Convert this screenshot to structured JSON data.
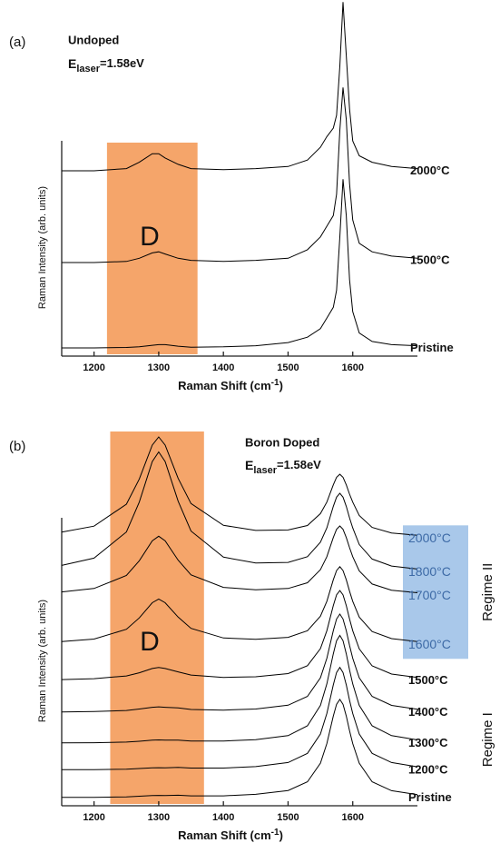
{
  "chart_data": [
    {
      "type": "line",
      "panel_label": "(a)",
      "title": "Undoped",
      "laser_symbol": "E",
      "laser_subscript": "laser",
      "laser_value": "=1.58eV",
      "annotation": "D",
      "xlabel": "Raman Shift (cm",
      "xlabel_superscript": "-1",
      "xlabel_end": ")",
      "ylabel": "Raman Intensity (arb. units)",
      "xlim": [
        1150,
        1700
      ],
      "xticks": [
        1200,
        1300,
        1400,
        1500,
        1600
      ],
      "ylim": [
        0,
        16.6
      ],
      "highlight": {
        "xlim": [
          1220,
          1360
        ],
        "color": "#f5a56a"
      },
      "x": [
        1150,
        1200,
        1250,
        1270,
        1290,
        1300,
        1310,
        1330,
        1350,
        1400,
        1450,
        1500,
        1530,
        1550,
        1560,
        1570,
        1575,
        1580,
        1585,
        1590,
        1595,
        1600,
        1610,
        1630,
        1660,
        1700
      ],
      "series": [
        {
          "name": "2000°C",
          "color": "#000000",
          "values": [
            8.6,
            8.6,
            8.7,
            9.0,
            9.4,
            9.4,
            9.2,
            8.9,
            8.7,
            8.65,
            8.7,
            8.8,
            9.1,
            9.7,
            10.2,
            10.6,
            11.2,
            13.5,
            16.5,
            14.0,
            11.5,
            10.0,
            9.3,
            9.0,
            8.8,
            8.7
          ]
        },
        {
          "name": "1500°C",
          "color": "#000000",
          "values": [
            4.3,
            4.3,
            4.35,
            4.5,
            4.75,
            4.8,
            4.7,
            4.5,
            4.4,
            4.35,
            4.4,
            4.5,
            4.9,
            5.5,
            6.0,
            6.5,
            7.5,
            10.5,
            12.5,
            11.0,
            8.0,
            6.3,
            5.2,
            4.8,
            4.6,
            4.5
          ]
        },
        {
          "name": "Pristine",
          "color": "#000000",
          "values": [
            0.3,
            0.3,
            0.32,
            0.35,
            0.42,
            0.45,
            0.45,
            0.38,
            0.33,
            0.35,
            0.4,
            0.55,
            0.8,
            1.2,
            1.7,
            2.2,
            3.0,
            5.5,
            8.2,
            6.5,
            3.5,
            2.0,
            1.0,
            0.6,
            0.45,
            0.4
          ]
        }
      ]
    },
    {
      "type": "line",
      "panel_label": "(b)",
      "title": "Boron Doped",
      "laser_symbol": "E",
      "laser_subscript": "laser",
      "laser_value": "=1.58eV",
      "annotation": "D",
      "xlabel": "Raman Shift (cm",
      "xlabel_superscript": "-1",
      "xlabel_end": ")",
      "ylabel": "Raman Intensity (arb. units)",
      "xlim": [
        1150,
        1700
      ],
      "xticks": [
        1200,
        1300,
        1400,
        1500,
        1600
      ],
      "ylim": [
        0,
        17.5
      ],
      "highlight": {
        "xlim": [
          1225,
          1370
        ],
        "color": "#f5a56a"
      },
      "regimes": [
        {
          "label": "Regime II",
          "highlight": "#a9c8ea",
          "text_color": "#3d6aa6"
        },
        {
          "label": "Regime I"
        }
      ],
      "x": [
        1150,
        1200,
        1250,
        1270,
        1290,
        1300,
        1310,
        1330,
        1350,
        1400,
        1450,
        1500,
        1530,
        1550,
        1560,
        1570,
        1575,
        1580,
        1585,
        1590,
        1595,
        1600,
        1610,
        1630,
        1660,
        1700
      ],
      "series": [
        {
          "name": "2000°C",
          "color": "#000000",
          "regime": 0,
          "values": [
            12.74,
            13.02,
            14.05,
            15.23,
            16.82,
            17.2,
            16.82,
            15.26,
            14.08,
            13.06,
            12.82,
            12.84,
            13.05,
            13.61,
            14.15,
            14.96,
            15.31,
            15.45,
            15.31,
            14.96,
            14.52,
            14.15,
            13.52,
            12.96,
            12.7,
            12.59
          ]
        },
        {
          "name": "1800°C",
          "color": "#000000",
          "regime": 0,
          "values": [
            11.18,
            11.52,
            12.75,
            14.15,
            16.05,
            16.5,
            16.05,
            14.19,
            12.79,
            11.57,
            11.29,
            11.32,
            11.59,
            12.27,
            12.94,
            13.95,
            14.38,
            14.56,
            14.38,
            13.95,
            13.41,
            12.94,
            12.16,
            11.48,
            11.15,
            11.01
          ]
        },
        {
          "name": "1700°C",
          "color": "#000000",
          "regime": 0,
          "values": [
            9.94,
            10.1,
            10.71,
            11.4,
            12.33,
            12.55,
            12.33,
            11.43,
            10.74,
            10.15,
            10.04,
            10.1,
            10.37,
            10.98,
            11.59,
            12.49,
            12.87,
            13.03,
            12.87,
            12.49,
            12.01,
            11.59,
            10.92,
            10.31,
            10.02,
            9.9
          ]
        },
        {
          "name": "1600°C",
          "color": "#000000",
          "regime": 0,
          "values": [
            7.61,
            7.73,
            8.19,
            8.72,
            9.43,
            9.6,
            9.43,
            8.76,
            8.23,
            7.78,
            7.72,
            7.81,
            8.12,
            8.8,
            9.5,
            10.51,
            10.94,
            11.12,
            10.94,
            10.51,
            9.97,
            9.5,
            8.76,
            8.08,
            7.75,
            7.61
          ]
        },
        {
          "name": "1500°C",
          "color": "#000000",
          "regime": 1,
          "values": [
            5.83,
            5.87,
            6.0,
            6.15,
            6.35,
            6.4,
            6.35,
            6.19,
            6.04,
            5.93,
            5.96,
            6.11,
            6.48,
            7.28,
            8.12,
            9.3,
            9.8,
            10.0,
            9.8,
            9.3,
            8.67,
            8.12,
            7.27,
            6.47,
            6.09,
            5.93
          ]
        },
        {
          "name": "1400°C",
          "color": "#000000",
          "regime": 1,
          "values": [
            4.31,
            4.33,
            4.38,
            4.45,
            4.53,
            4.55,
            4.53,
            4.5,
            4.43,
            4.4,
            4.45,
            4.63,
            5.04,
            5.91,
            6.83,
            8.12,
            8.67,
            8.9,
            8.67,
            8.12,
            7.43,
            6.83,
            5.91,
            5.04,
            4.62,
            4.44
          ]
        },
        {
          "name": "1300°C",
          "color": "#000000",
          "regime": 1,
          "values": [
            2.86,
            2.87,
            2.9,
            2.94,
            2.99,
            3.0,
            2.99,
            2.99,
            2.95,
            2.95,
            3.01,
            3.2,
            3.66,
            4.62,
            5.63,
            7.04,
            7.65,
            7.9,
            7.65,
            7.04,
            6.28,
            5.63,
            4.62,
            3.66,
            3.2,
            3.0
          ]
        },
        {
          "name": "1200°C",
          "color": "#000000",
          "regime": 1,
          "values": [
            1.61,
            1.61,
            1.63,
            1.66,
            1.69,
            1.7,
            1.69,
            1.71,
            1.68,
            1.68,
            1.75,
            1.94,
            2.37,
            3.28,
            4.24,
            5.58,
            6.16,
            6.4,
            6.16,
            5.58,
            4.86,
            4.24,
            3.28,
            2.37,
            1.94,
            1.74
          ]
        },
        {
          "name": "Pristine",
          "color": "#000000",
          "regime": 1,
          "values": [
            0.31,
            0.31,
            0.33,
            0.36,
            0.39,
            0.4,
            0.39,
            0.41,
            0.38,
            0.38,
            0.45,
            0.63,
            1.04,
            1.91,
            2.83,
            4.12,
            4.67,
            4.9,
            4.67,
            4.12,
            3.43,
            2.83,
            1.91,
            1.04,
            0.62,
            0.44
          ]
        }
      ]
    }
  ]
}
